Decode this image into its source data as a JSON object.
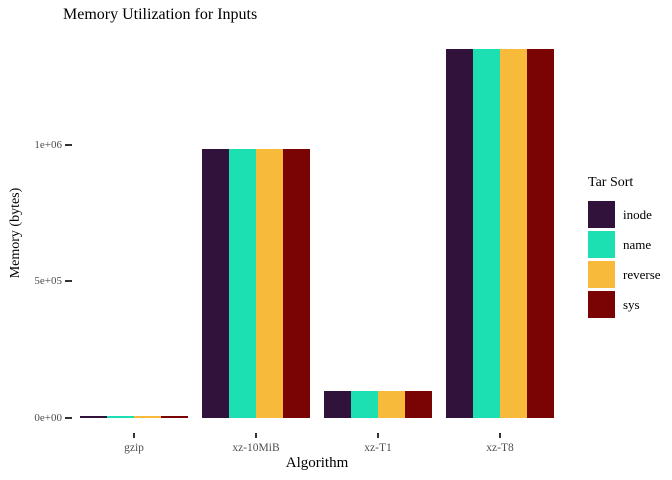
{
  "chart_data": {
    "type": "bar",
    "title": "Memory Utilization for Inputs",
    "xlabel": "Algorithm",
    "ylabel": "Memory (bytes)",
    "legend_title": "Tar Sort",
    "legend_position": "right",
    "grid": false,
    "categories": [
      "gzip",
      "xz-10MiB",
      "xz-T1",
      "xz-T8"
    ],
    "series": [
      {
        "name": "inode",
        "color": "#30123B",
        "values": [
          8000,
          985000,
          98500,
          1350000
        ]
      },
      {
        "name": "name",
        "color": "#1CE0B2",
        "values": [
          8000,
          985000,
          98500,
          1350000
        ]
      },
      {
        "name": "reverse",
        "color": "#F8BA3B",
        "values": [
          8000,
          985000,
          98500,
          1350000
        ]
      },
      {
        "name": "sys",
        "color": "#7A0403",
        "values": [
          8000,
          985000,
          98500,
          1350000
        ]
      }
    ],
    "yticks": [
      {
        "label": "0e+00",
        "value": 0
      },
      {
        "label": "5e+05",
        "value": 500000
      },
      {
        "label": "1e+06",
        "value": 1000000
      }
    ],
    "ylim": [
      0,
      1420000
    ]
  },
  "colors": {
    "background": "#FFFFFF",
    "axis_text": "#4D4D4D",
    "tick_mark": "#333333",
    "title_text": "#000000"
  }
}
